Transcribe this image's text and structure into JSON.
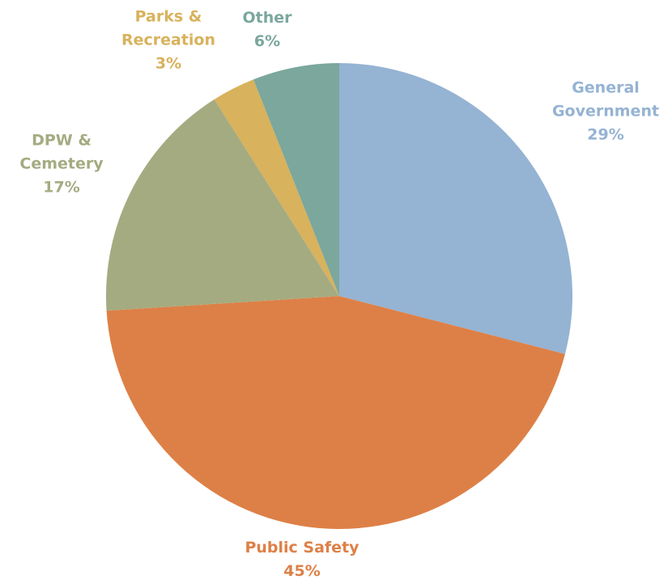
{
  "chart_data": {
    "type": "pie",
    "categories": [
      "General Government",
      "Public Safety",
      "DPW & Cemetery",
      "Parks & Recreation",
      "Other"
    ],
    "values": [
      29,
      45,
      17,
      3,
      6
    ],
    "value_labels": [
      "29%",
      "45%",
      "17%",
      "3%",
      "6%"
    ],
    "colors": [
      "#95b3d3",
      "#dd8047",
      "#a5ab81",
      "#d8b25c",
      "#7ba79d"
    ]
  }
}
